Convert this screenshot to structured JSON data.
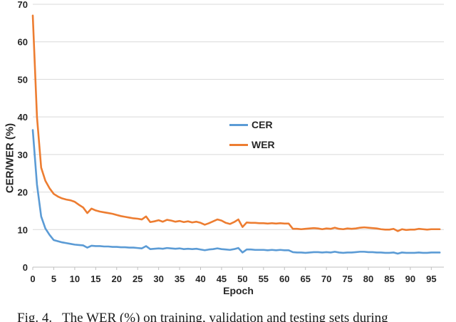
{
  "caption": "Fig. 4.   The WER (%) on training, validation and testing sets during",
  "chart_data": {
    "type": "line",
    "title": "",
    "xlabel": "Epoch",
    "ylabel": "CER/WER (%)",
    "xlim": [
      0,
      98
    ],
    "ylim": [
      0,
      70
    ],
    "xticks": [
      0,
      5,
      10,
      15,
      20,
      25,
      30,
      35,
      40,
      45,
      50,
      55,
      60,
      65,
      70,
      75,
      80,
      85,
      90,
      95
    ],
    "yticks": [
      0,
      10,
      20,
      30,
      40,
      50,
      60,
      70
    ],
    "grid": true,
    "legend_position": "inside-center-left",
    "x_start": 0,
    "x_step": 1,
    "colors": {
      "grid": "#D9D9D9",
      "axis": "#BFBFBF",
      "tick_label": "#262626"
    },
    "series": [
      {
        "name": "CER",
        "color": "#5B9BD5",
        "values": [
          36.5,
          22,
          13.5,
          10.3,
          8.6,
          7.2,
          6.9,
          6.6,
          6.4,
          6.2,
          6.0,
          5.9,
          5.8,
          5.2,
          5.7,
          5.6,
          5.6,
          5.5,
          5.5,
          5.4,
          5.4,
          5.3,
          5.3,
          5.2,
          5.2,
          5.1,
          5.0,
          5.6,
          4.8,
          4.9,
          5.0,
          4.9,
          5.1,
          5.0,
          4.9,
          5.0,
          4.8,
          4.9,
          4.8,
          4.9,
          4.7,
          4.5,
          4.7,
          4.8,
          5.0,
          4.8,
          4.7,
          4.6,
          4.8,
          5.1,
          3.9,
          4.7,
          4.7,
          4.6,
          4.6,
          4.6,
          4.5,
          4.6,
          4.5,
          4.6,
          4.5,
          4.5,
          4.0,
          3.9,
          3.9,
          3.8,
          3.9,
          4.0,
          4.0,
          3.9,
          4.0,
          3.9,
          4.1,
          3.9,
          3.8,
          3.9,
          3.9,
          4.0,
          4.1,
          4.1,
          4.0,
          4.0,
          3.9,
          3.9,
          3.8,
          3.8,
          3.9,
          3.6,
          3.9,
          3.8,
          3.8,
          3.8,
          3.9,
          3.8,
          3.8,
          3.9,
          3.9,
          3.9
        ]
      },
      {
        "name": "WER",
        "color": "#ED7D31",
        "values": [
          67,
          40,
          26.5,
          23,
          21,
          19.5,
          18.8,
          18.3,
          18.0,
          17.8,
          17.4,
          16.6,
          15.9,
          14.4,
          15.6,
          15.1,
          14.8,
          14.6,
          14.4,
          14.2,
          13.9,
          13.6,
          13.4,
          13.2,
          13.0,
          12.9,
          12.7,
          13.5,
          12.0,
          12.2,
          12.5,
          12.1,
          12.6,
          12.4,
          12.1,
          12.3,
          12.0,
          12.2,
          11.9,
          12.1,
          11.8,
          11.3,
          11.7,
          12.2,
          12.7,
          12.4,
          11.8,
          11.5,
          12.0,
          12.7,
          10.7,
          11.9,
          11.8,
          11.8,
          11.7,
          11.7,
          11.6,
          11.7,
          11.6,
          11.7,
          11.6,
          11.6,
          10.2,
          10.2,
          10.1,
          10.2,
          10.3,
          10.4,
          10.3,
          10.1,
          10.3,
          10.2,
          10.5,
          10.2,
          10.1,
          10.3,
          10.2,
          10.3,
          10.5,
          10.6,
          10.5,
          10.4,
          10.3,
          10.1,
          10.0,
          10.0,
          10.2,
          9.6,
          10.1,
          9.9,
          10.0,
          10.0,
          10.2,
          10.1,
          10.0,
          10.1,
          10.1,
          10.1
        ]
      }
    ]
  }
}
